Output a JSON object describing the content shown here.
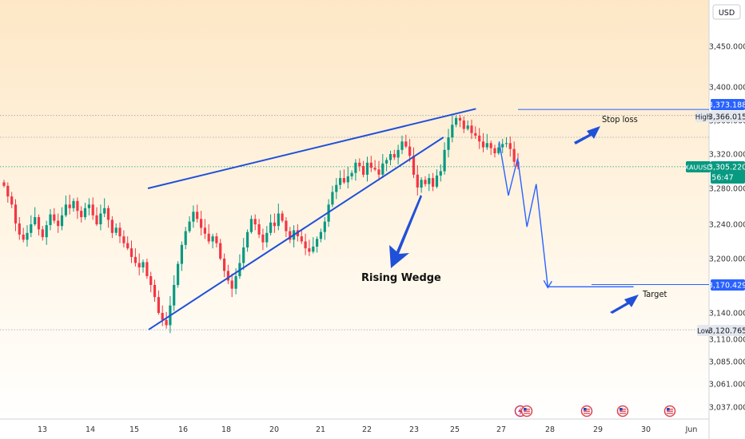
{
  "chart_data": {
    "type": "candlestick",
    "symbol": "XAUUSD",
    "currency": "USD",
    "ylim": [
      3030,
      3480
    ],
    "y_ticks": [
      "3,450.000",
      "3,400.000",
      "3,360.000",
      "3,320.000",
      "3,280.000",
      "3,240.000",
      "3,200.000",
      "3,170.000",
      "3,140.000",
      "3,110.000",
      "3,085.000",
      "3,061.000",
      "3,037.000"
    ],
    "x_ticks": [
      "13",
      "14",
      "15",
      "16",
      "18",
      "20",
      "21",
      "22",
      "23",
      "25",
      "27",
      "28",
      "29",
      "30",
      "Jun"
    ],
    "price_tags": {
      "stop_level": "3,373.188",
      "high_label": "High",
      "high_value": "3,366.015",
      "current_symbol": "XAUUSD",
      "current_value": "3,305.220",
      "countdown": "56:47",
      "target_value": "3,170.429",
      "low_label": "Low",
      "low_value": "3,120.765"
    },
    "levels": {
      "stop_loss": 3373.188,
      "high": 3366.015,
      "current": 3305.22,
      "target": 3170.429,
      "low": 3120.765,
      "dotted_mid": 3340
    },
    "annotations": {
      "pattern": "Rising Wedge",
      "stop_loss": "Stop loss",
      "target": "Target"
    },
    "wedge": {
      "upper": [
        [
          0,
          3280
        ],
        [
          7.3,
          3374
        ]
      ],
      "lower": [
        [
          0,
          3121
        ],
        [
          6.6,
          3340
        ]
      ]
    },
    "projection": [
      [
        7.8,
        3335
      ],
      [
        8.0,
        3272
      ],
      [
        8.2,
        3315
      ],
      [
        8.4,
        3237
      ],
      [
        8.6,
        3285
      ],
      [
        8.85,
        3168
      ],
      [
        10.7,
        3168
      ]
    ],
    "closes": [
      3283,
      3271,
      3262,
      3241,
      3228,
      3222,
      3230,
      3240,
      3248,
      3234,
      3225,
      3239,
      3251,
      3244,
      3238,
      3250,
      3262,
      3258,
      3266,
      3255,
      3248,
      3258,
      3262,
      3250,
      3240,
      3252,
      3258,
      3245,
      3230,
      3236,
      3226,
      3218,
      3212,
      3202,
      3195,
      3190,
      3196,
      3180,
      3170,
      3157,
      3140,
      3132,
      3126,
      3148,
      3170,
      3194,
      3216,
      3232,
      3243,
      3254,
      3246,
      3236,
      3229,
      3220,
      3226,
      3218,
      3200,
      3186,
      3175,
      3166,
      3180,
      3195,
      3213,
      3231,
      3246,
      3240,
      3228,
      3219,
      3230,
      3242,
      3238,
      3252,
      3244,
      3232,
      3222,
      3233,
      3226,
      3220,
      3212,
      3208,
      3214,
      3223,
      3231,
      3243,
      3262,
      3276,
      3284,
      3292,
      3287,
      3294,
      3298,
      3310,
      3306,
      3296,
      3310,
      3304,
      3302,
      3296,
      3309,
      3313,
      3320,
      3316,
      3325,
      3335,
      3329,
      3318,
      3296,
      3281,
      3290,
      3285,
      3292,
      3282,
      3295,
      3300,
      3325,
      3340,
      3355,
      3363,
      3360,
      3350,
      3354,
      3345,
      3342,
      3335,
      3328,
      3333,
      3327,
      3321,
      3328,
      3332,
      3333,
      3326,
      3311,
      3305
    ]
  }
}
